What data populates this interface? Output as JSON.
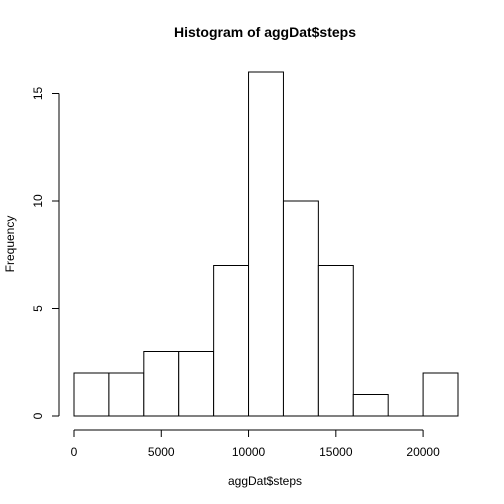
{
  "chart_data": {
    "type": "bar",
    "title": "Histogram of aggDat$steps",
    "xlabel": "aggDat$steps",
    "ylabel": "Frequency",
    "bins": [
      {
        "start": 0,
        "end": 2000,
        "count": 2
      },
      {
        "start": 2000,
        "end": 4000,
        "count": 2
      },
      {
        "start": 4000,
        "end": 6000,
        "count": 3
      },
      {
        "start": 6000,
        "end": 8000,
        "count": 3
      },
      {
        "start": 8000,
        "end": 10000,
        "count": 7
      },
      {
        "start": 10000,
        "end": 12000,
        "count": 16
      },
      {
        "start": 12000,
        "end": 14000,
        "count": 10
      },
      {
        "start": 14000,
        "end": 16000,
        "count": 7
      },
      {
        "start": 16000,
        "end": 18000,
        "count": 1
      },
      {
        "start": 18000,
        "end": 20000,
        "count": 0
      },
      {
        "start": 20000,
        "end": 22000,
        "count": 2
      }
    ],
    "xlim": [
      0,
      22000
    ],
    "ylim": [
      0,
      16
    ],
    "xticks": [
      0,
      5000,
      10000,
      15000,
      20000
    ],
    "xtick_labels": [
      "0",
      "5000",
      "10000",
      "15000",
      "20000"
    ],
    "yticks": [
      0,
      5,
      10,
      15
    ],
    "ytick_labels": [
      "0",
      "5",
      "10",
      "15"
    ],
    "grid": false,
    "legend": "none",
    "colors": {
      "bar_fill": "#ffffff",
      "bar_stroke": "#000000"
    }
  }
}
